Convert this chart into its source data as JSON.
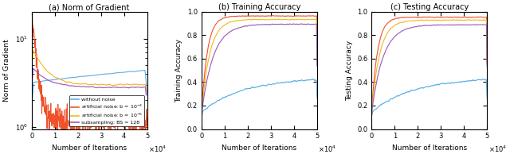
{
  "subplot_titles": [
    "(a) Norm of Gradient",
    "(b) Training Accuracy",
    "(c) Testing Accuracy"
  ],
  "legend_labels": [
    "without noise",
    "artificial noise: b = $10^{-3}$",
    "artificial noise: b = $10^{-5}$",
    "subsampling: BS = 128"
  ],
  "colors": [
    "#5aaee8",
    "#f0512a",
    "#f5b820",
    "#9b59b6"
  ],
  "xlabel": "Number of Iterations",
  "ylabel_0": "Norm of Gradient",
  "ylabel_1": "Training Accuracy",
  "ylabel_2": "Testing Accuracy",
  "x_ticks": [
    0,
    10000,
    20000,
    30000,
    40000,
    50000
  ],
  "x_tick_labels": [
    "0",
    "1",
    "2",
    "3",
    "4",
    "5"
  ]
}
